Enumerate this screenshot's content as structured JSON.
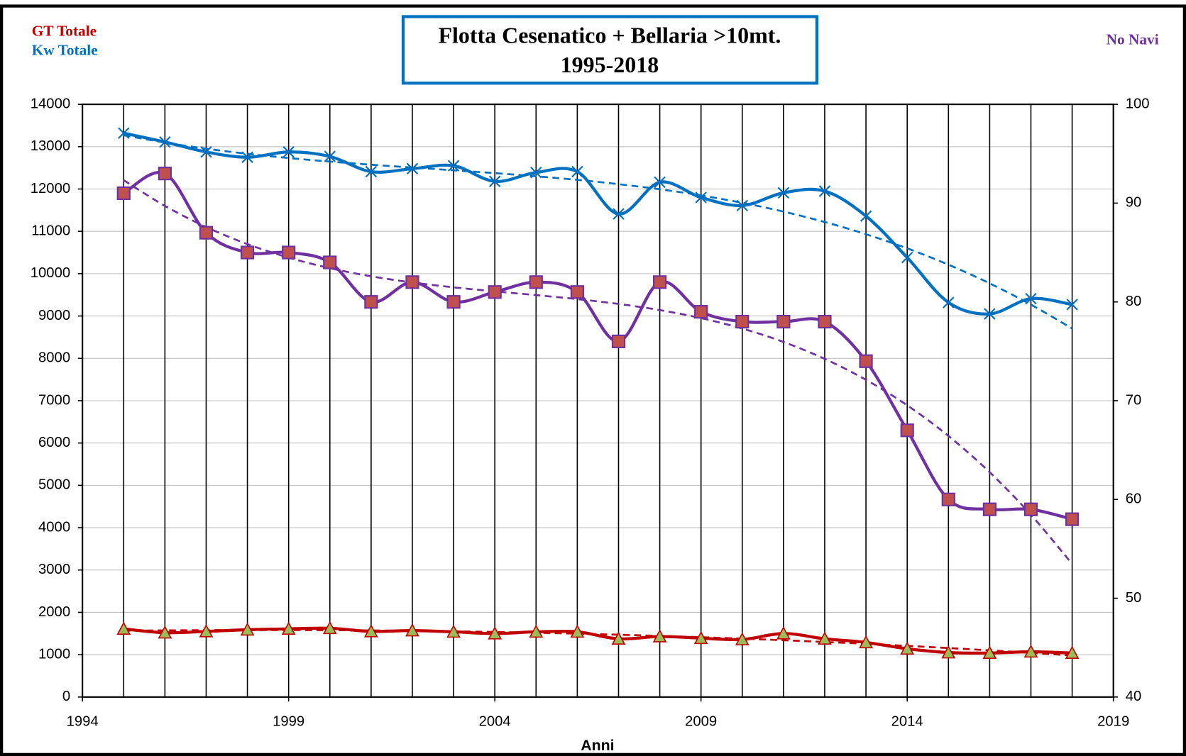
{
  "chart_data": {
    "type": "line",
    "title": "Flotta Cesenatico + Bellaria >10mt.",
    "subtitle": "1995-2018",
    "x_label": "Anni",
    "x": [
      1995,
      1996,
      1997,
      1998,
      1999,
      2000,
      2001,
      2002,
      2003,
      2004,
      2005,
      2006,
      2007,
      2008,
      2009,
      2010,
      2011,
      2012,
      2013,
      2014,
      2015,
      2016,
      2017,
      2018
    ],
    "series": [
      {
        "name": "GT Totale",
        "color": "#c00000",
        "marker": "triangle",
        "axis": "y",
        "values": [
          1610,
          1520,
          1550,
          1590,
          1610,
          1625,
          1550,
          1570,
          1540,
          1500,
          1540,
          1540,
          1375,
          1430,
          1390,
          1360,
          1500,
          1375,
          1290,
          1140,
          1050,
          1040,
          1070,
          1040
        ]
      },
      {
        "name": "Kw Totale",
        "color": "#0070c0",
        "marker": "x",
        "axis": "y",
        "values": [
          13320,
          13110,
          12875,
          12750,
          12875,
          12770,
          12410,
          12480,
          12550,
          12180,
          12390,
          12410,
          11410,
          12160,
          11800,
          11610,
          11910,
          11950,
          11360,
          10380,
          9320,
          9050,
          9410,
          9270
        ]
      },
      {
        "name": "No Navi",
        "color": "#7030a0",
        "marker": "square",
        "axis": "y2",
        "values": [
          91,
          93,
          87,
          85,
          85,
          84,
          80,
          82,
          80,
          81,
          82,
          81,
          76,
          82,
          79,
          78,
          78,
          78,
          74,
          67,
          60,
          59,
          59,
          58
        ]
      }
    ],
    "xlim": [
      1994,
      2019
    ],
    "xticks": [
      1994,
      1999,
      2004,
      2009,
      2014,
      2019
    ],
    "ylim": [
      0,
      14000
    ],
    "yticks": [
      0,
      1000,
      2000,
      3000,
      4000,
      5000,
      6000,
      7000,
      8000,
      9000,
      10000,
      11000,
      12000,
      13000,
      14000
    ],
    "y2lim": [
      40,
      100
    ],
    "y2ticks": [
      40,
      50,
      60,
      70,
      80,
      90,
      100
    ],
    "grid": true,
    "trendline": "polynomial",
    "smooth": true
  }
}
